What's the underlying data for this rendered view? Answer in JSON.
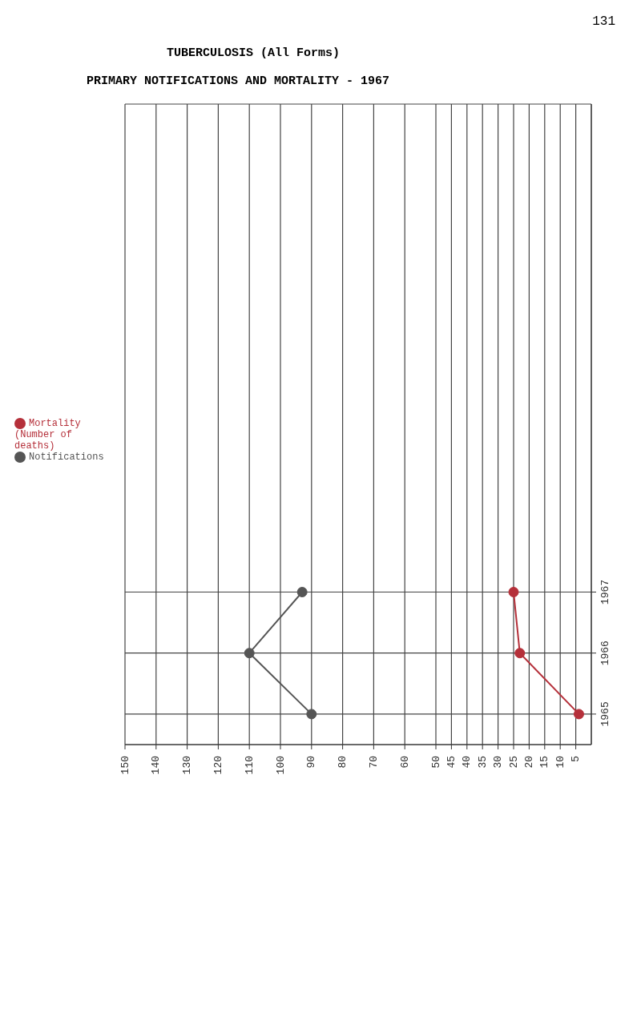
{
  "chart_data": {
    "type": "line",
    "title": "TUBERCULOSIS (All Forms)",
    "subtitle": "PRIMARY NOTIFICATIONS AND MORTALITY - 1967",
    "annotations": [
      "131"
    ],
    "orientation": "horizontal",
    "categories": [
      "1967",
      "1966",
      "1965"
    ],
    "series": [
      {
        "name": "Notifications",
        "color": "#555555",
        "values": [
          93,
          110,
          90
        ]
      },
      {
        "name": "Mortality (Number of deaths)",
        "color": "#b5303a",
        "values": [
          25,
          23,
          4
        ]
      }
    ],
    "xlim": [
      150,
      0
    ],
    "xticks": [
      150,
      140,
      130,
      120,
      110,
      100,
      90,
      80,
      70,
      60,
      50,
      45,
      40,
      35,
      30,
      25,
      20,
      15,
      10,
      5
    ],
    "grid": true,
    "legend": "left",
    "marker": "circle",
    "line_style": "solid"
  }
}
